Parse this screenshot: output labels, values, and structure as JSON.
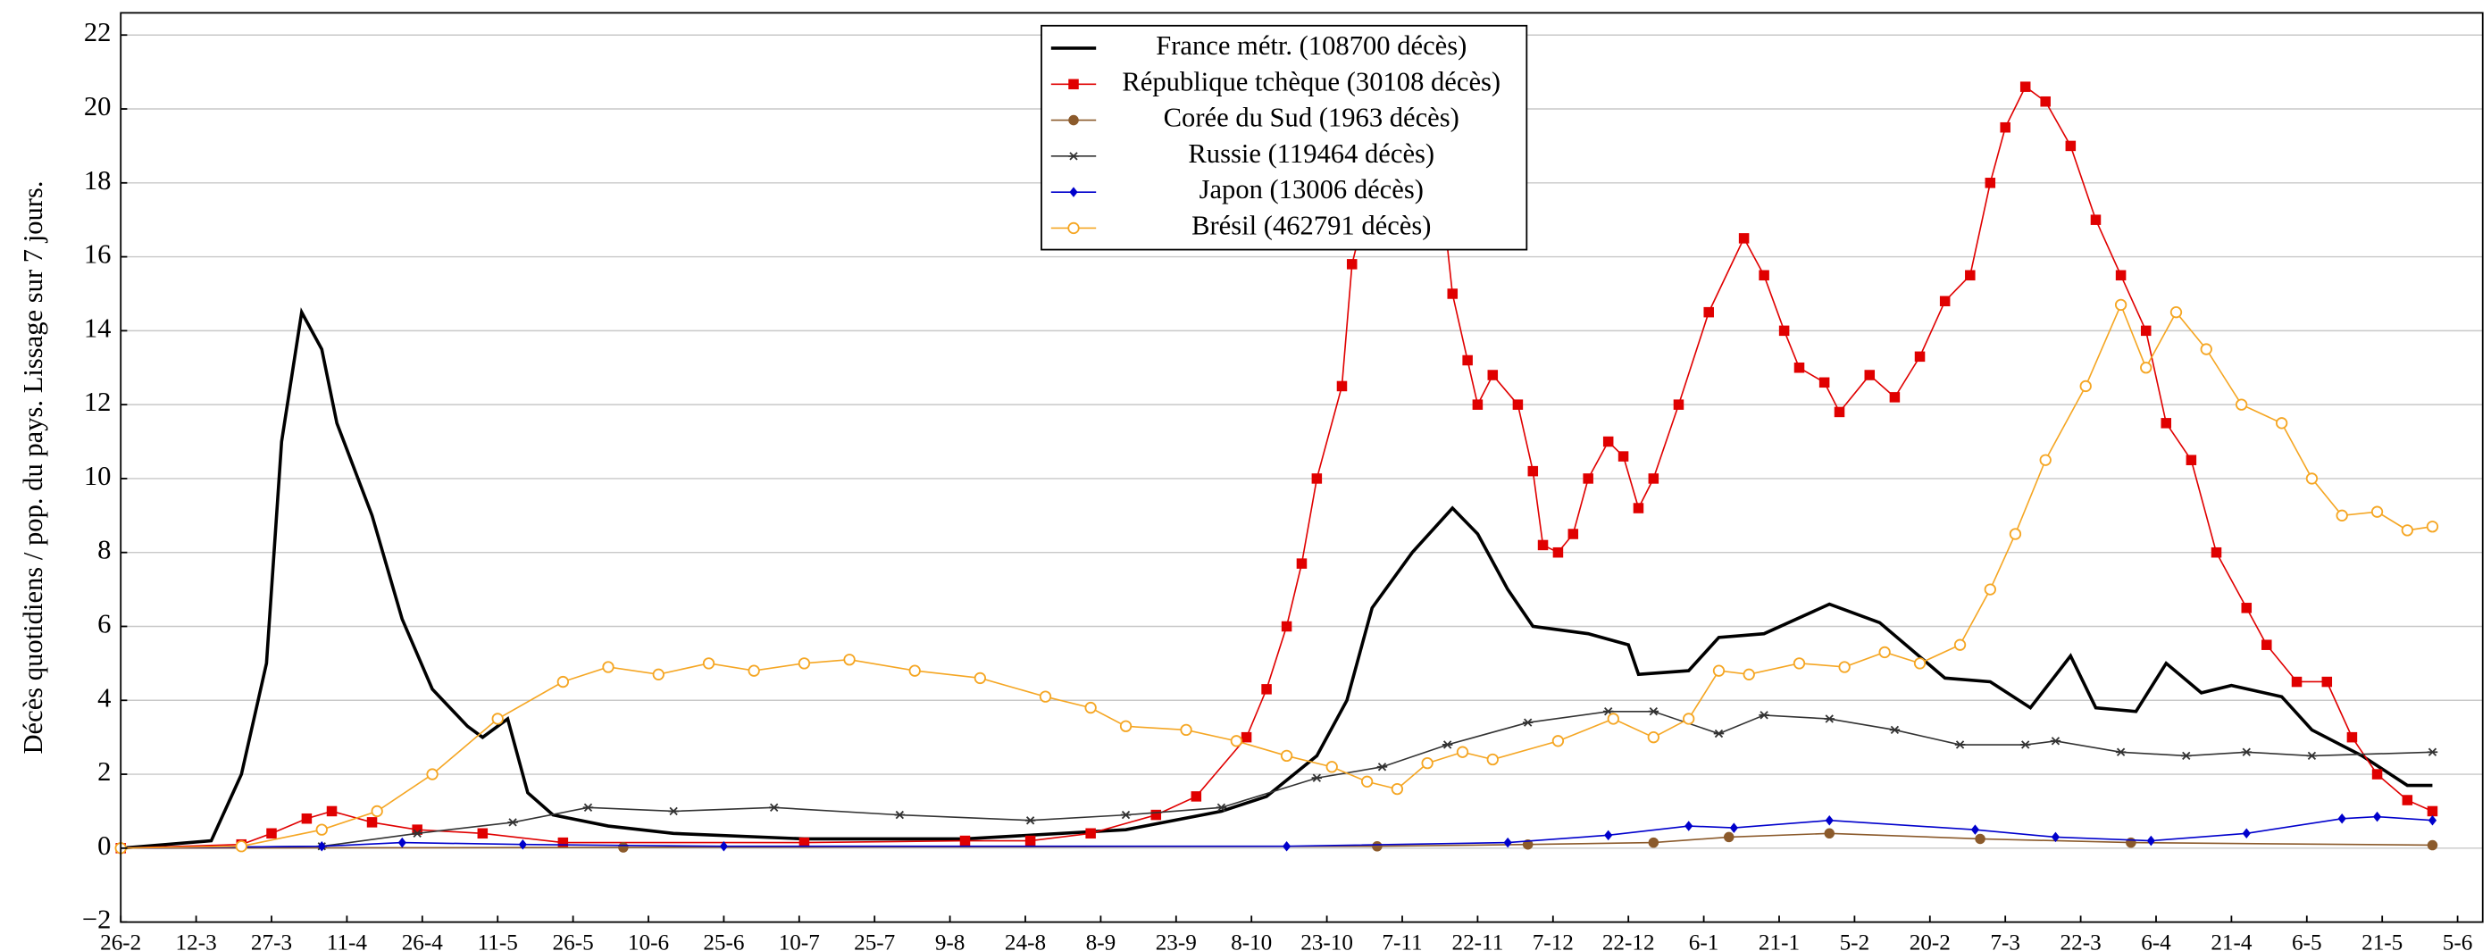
{
  "chart_data": {
    "type": "line",
    "y_label": "Décès quotidiens / pop. du pays. Lissage sur 7 jours.",
    "xlim": [
      0,
      470
    ],
    "ylim": [
      -2,
      22.6
    ],
    "xticks": [
      {
        "value": 0,
        "label": "26-2"
      },
      {
        "value": 15,
        "label": "12-3"
      },
      {
        "value": 30,
        "label": "27-3"
      },
      {
        "value": 45,
        "label": "11-4"
      },
      {
        "value": 60,
        "label": "26-4"
      },
      {
        "value": 75,
        "label": "11-5"
      },
      {
        "value": 90,
        "label": "26-5"
      },
      {
        "value": 105,
        "label": "10-6"
      },
      {
        "value": 120,
        "label": "25-6"
      },
      {
        "value": 135,
        "label": "10-7"
      },
      {
        "value": 150,
        "label": "25-7"
      },
      {
        "value": 165,
        "label": "9-8"
      },
      {
        "value": 180,
        "label": "24-8"
      },
      {
        "value": 195,
        "label": "8-9"
      },
      {
        "value": 210,
        "label": "23-9"
      },
      {
        "value": 225,
        "label": "8-10"
      },
      {
        "value": 240,
        "label": "23-10"
      },
      {
        "value": 255,
        "label": "7-11"
      },
      {
        "value": 270,
        "label": "22-11"
      },
      {
        "value": 285,
        "label": "7-12"
      },
      {
        "value": 300,
        "label": "22-12"
      },
      {
        "value": 315,
        "label": "6-1"
      },
      {
        "value": 330,
        "label": "21-1"
      },
      {
        "value": 345,
        "label": "5-2"
      },
      {
        "value": 360,
        "label": "20-2"
      },
      {
        "value": 375,
        "label": "7-3"
      },
      {
        "value": 390,
        "label": "22-3"
      },
      {
        "value": 405,
        "label": "6-4"
      },
      {
        "value": 420,
        "label": "21-4"
      },
      {
        "value": 435,
        "label": "6-5"
      },
      {
        "value": 450,
        "label": "21-5"
      },
      {
        "value": 465,
        "label": "5-6"
      }
    ],
    "yticks": [
      {
        "value": -2,
        "label": "−2"
      },
      0,
      2,
      4,
      6,
      8,
      10,
      12,
      14,
      16,
      18,
      20,
      22
    ],
    "grid": true,
    "legend": "top",
    "series": [
      {
        "name": "France métr. (108700 décès)",
        "color": "#000000",
        "marker": "none",
        "x": [
          0,
          18,
          24,
          29,
          32,
          36,
          40,
          43,
          50,
          56,
          62,
          69,
          72,
          77,
          81,
          86,
          97,
          110,
          136,
          168,
          200,
          219,
          228,
          238,
          244,
          249,
          257,
          265,
          270,
          276,
          281,
          292,
          300,
          302,
          312,
          318,
          327,
          340,
          350,
          363,
          372,
          380,
          388,
          393,
          401,
          407,
          414,
          420,
          430,
          436,
          446,
          455,
          460
        ],
        "values": [
          0,
          0.2,
          2,
          5,
          11,
          14.5,
          13.5,
          11.5,
          9,
          6.2,
          4.3,
          3.3,
          3,
          3.5,
          1.5,
          0.9,
          0.6,
          0.4,
          0.25,
          0.25,
          0.5,
          1.0,
          1.4,
          2.5,
          4,
          6.5,
          8,
          9.2,
          8.5,
          7,
          6,
          5.8,
          5.5,
          4.7,
          4.8,
          5.7,
          5.8,
          6.6,
          6.1,
          4.6,
          4.5,
          3.8,
          5.2,
          3.8,
          3.7,
          5,
          4.2,
          4.4,
          4.1,
          3.2,
          2.5,
          1.7,
          1.7
        ]
      },
      {
        "name": "République tchèque (30108 décès)",
        "color": "#e00000",
        "marker": "square",
        "x": [
          0,
          24,
          30,
          37,
          42,
          50,
          59,
          72,
          88,
          136,
          168,
          181,
          193,
          206,
          214,
          224,
          228,
          232,
          235,
          238,
          243,
          245,
          249,
          254,
          259,
          263,
          265,
          268,
          270,
          273,
          278,
          281,
          283,
          286,
          289,
          292,
          296,
          299,
          302,
          305,
          310,
          316,
          323,
          327,
          331,
          334,
          339,
          342,
          348,
          353,
          358,
          363,
          368,
          372,
          375,
          379,
          383,
          388,
          393,
          398,
          403,
          407,
          412,
          417,
          423,
          427,
          433,
          439,
          444,
          449,
          455,
          460
        ],
        "values": [
          0,
          0.1,
          0.4,
          0.8,
          1.0,
          0.7,
          0.5,
          0.4,
          0.15,
          0.15,
          0.2,
          0.2,
          0.4,
          0.9,
          1.4,
          3,
          4.3,
          6,
          7.7,
          10,
          12.5,
          15.8,
          18,
          19.5,
          19,
          17.5,
          15,
          13.2,
          12,
          12.8,
          12,
          10.2,
          8.2,
          8,
          8.5,
          10,
          11,
          10.6,
          9.2,
          10,
          12,
          14.5,
          16.5,
          15.5,
          14,
          13,
          12.6,
          11.8,
          12.8,
          12.2,
          13.3,
          14.8,
          15.5,
          18,
          19.5,
          20.6,
          20.2,
          19,
          17,
          15.5,
          14,
          11.5,
          10.5,
          8,
          6.5,
          5.5,
          4.5,
          4.5,
          3,
          2,
          1.3,
          1.0
        ]
      },
      {
        "name": "Corée du Sud (1963 décès)",
        "color": "#8b5a2b",
        "marker": "circle",
        "x": [
          0,
          100,
          250,
          280,
          305,
          320,
          340,
          370,
          400,
          460
        ],
        "values": [
          0,
          0.02,
          0.05,
          0.1,
          0.15,
          0.3,
          0.4,
          0.25,
          0.15,
          0.08
        ]
      },
      {
        "name": "Russie (119464 décès)",
        "color": "#333333",
        "marker": "star",
        "x": [
          0,
          40,
          59,
          78,
          93,
          110,
          130,
          155,
          181,
          200,
          219,
          238,
          251,
          264,
          280,
          296,
          305,
          318,
          327,
          340,
          353,
          366,
          379,
          385,
          398,
          411,
          423,
          436,
          460
        ],
        "values": [
          0,
          0.05,
          0.4,
          0.7,
          1.1,
          1.0,
          1.1,
          0.9,
          0.75,
          0.9,
          1.1,
          1.9,
          2.2,
          2.8,
          3.4,
          3.7,
          3.7,
          3.1,
          3.6,
          3.5,
          3.2,
          2.8,
          2.8,
          2.9,
          2.6,
          2.5,
          2.6,
          2.5,
          2.6
        ]
      },
      {
        "name": "Japon (13006 décès)",
        "color": "#0000cc",
        "marker": "diamond",
        "x": [
          0,
          40,
          56,
          80,
          120,
          232,
          276,
          296,
          312,
          321,
          340,
          369,
          385,
          404,
          423,
          442,
          449,
          460
        ],
        "values": [
          0,
          0.05,
          0.15,
          0.1,
          0.05,
          0.05,
          0.15,
          0.35,
          0.6,
          0.55,
          0.75,
          0.5,
          0.3,
          0.2,
          0.4,
          0.8,
          0.85,
          0.75
        ]
      },
      {
        "name": "Brésil (462791 décès)",
        "color": "#f5a623",
        "marker": "open-circle",
        "x": [
          0,
          24,
          40,
          51,
          62,
          75,
          88,
          97,
          107,
          117,
          126,
          136,
          145,
          158,
          171,
          184,
          193,
          200,
          212,
          222,
          232,
          241,
          248,
          254,
          260,
          267,
          273,
          286,
          297,
          305,
          312,
          318,
          324,
          334,
          343,
          351,
          358,
          366,
          372,
          377,
          383,
          391,
          398,
          403,
          409,
          415,
          422,
          430,
          436,
          442,
          449,
          455,
          460
        ],
        "values": [
          0,
          0.05,
          0.5,
          1,
          2,
          3.5,
          4.5,
          4.9,
          4.7,
          5,
          4.8,
          5,
          5.1,
          4.8,
          4.6,
          4.1,
          3.8,
          3.3,
          3.2,
          2.9,
          2.5,
          2.2,
          1.8,
          1.6,
          2.3,
          2.6,
          2.4,
          2.9,
          3.5,
          3.0,
          3.5,
          4.8,
          4.7,
          5,
          4.9,
          5.3,
          5,
          5.5,
          7,
          8.5,
          10.5,
          12.5,
          14.7,
          13,
          14.5,
          13.5,
          12,
          11.5,
          10,
          9,
          9.1,
          8.6,
          8.7
        ]
      }
    ]
  }
}
